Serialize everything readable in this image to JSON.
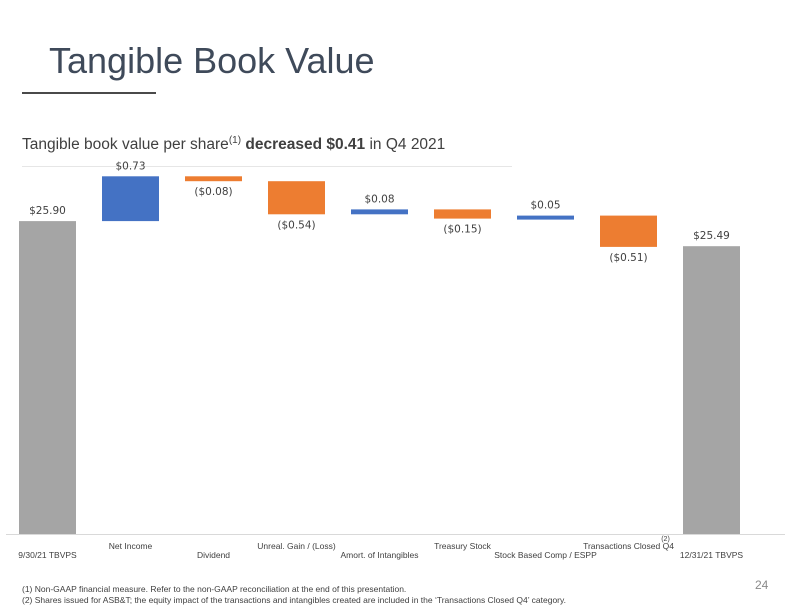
{
  "slide": {
    "title": "Tangible Book Value",
    "subtitle_pre": "Tangible book value per share",
    "subtitle_sup": "(1)",
    "subtitle_bold": "decreased $0.41",
    "subtitle_post": " in Q4 2021",
    "page_number": "24",
    "footnote_1": "(1)  Non-GAAP financial measure.  Refer to the non-GAAP reconciliation at the end of this presentation.",
    "footnote_2": "(2)  Shares issued for ASB&T; the equity impact of the transactions and intangibles created are included in the ‘Transactions Closed Q4’ category."
  },
  "chart_data": {
    "type": "waterfall",
    "title": "",
    "xlabel": "",
    "ylabel": "",
    "ylim": [
      20.8,
      26.7
    ],
    "grid": false,
    "legend": "none",
    "colors": {
      "total": "#a5a5a5",
      "increase": "#4472c4",
      "decrease": "#ed7d31"
    },
    "categories": [
      "9/30/21 TBVPS",
      "Net Income",
      "Dividend",
      "Unreal. Gain / (Loss)",
      "Amort. of Intangibles",
      "Treasury Stock",
      "Stock Based Comp / ESPP",
      "Transactions Closed Q4",
      "12/31/21 TBVPS"
    ],
    "category_superscripts": [
      "",
      "",
      "",
      "",
      "",
      "",
      "",
      "(2)",
      ""
    ],
    "values": [
      25.9,
      0.73,
      -0.08,
      -0.54,
      0.08,
      -0.15,
      0.05,
      -0.51,
      25.49
    ],
    "kinds": [
      "total",
      "increase",
      "decrease",
      "decrease",
      "increase",
      "decrease",
      "increase",
      "decrease",
      "total"
    ],
    "value_labels": [
      "$25.90",
      "$0.73",
      "($0.08)",
      "($0.54)",
      "$0.08",
      "($0.15)",
      "$0.05",
      "($0.51)",
      "$25.49"
    ]
  }
}
